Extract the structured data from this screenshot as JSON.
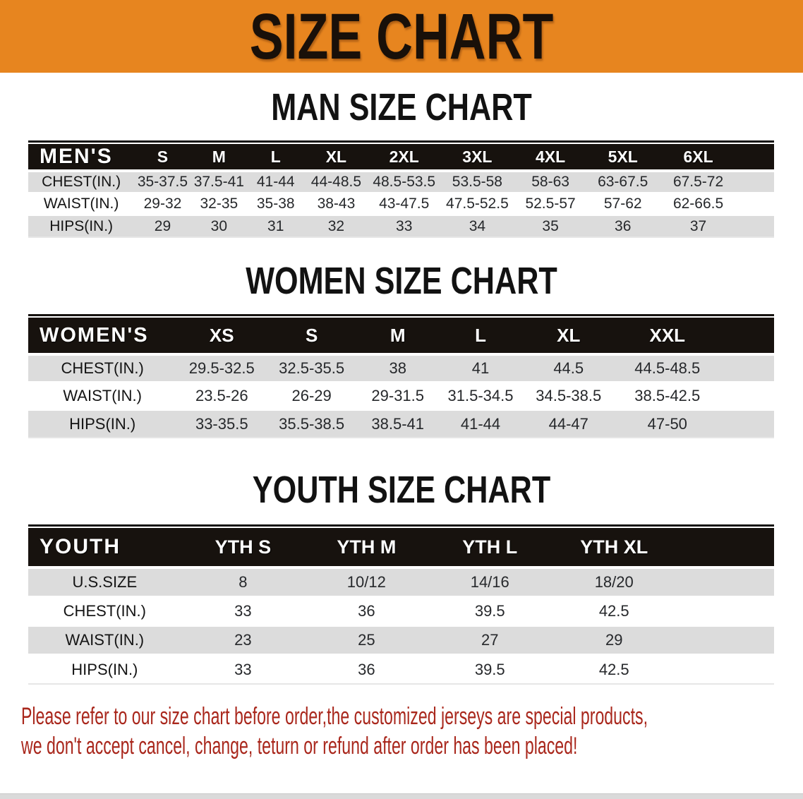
{
  "banner": {
    "title": "SIZE CHART",
    "bg_color": "#E7851F"
  },
  "sections": [
    {
      "id": "men",
      "heading": "MAN SIZE CHART",
      "table": {
        "header": [
          "MEN'S",
          "S",
          "M",
          "L",
          "XL",
          "2XL",
          "3XL",
          "4XL",
          "5XL",
          "6XL"
        ],
        "rows": [
          [
            "CHEST(IN.)",
            "35-37.5",
            "37.5-41",
            "41-44",
            "44-48.5",
            "48.5-53.5",
            "53.5-58",
            "58-63",
            "63-67.5",
            "67.5-72"
          ],
          [
            "WAIST(IN.)",
            "29-32",
            "32-35",
            "35-38",
            "38-43",
            "43-47.5",
            "47.5-52.5",
            "52.5-57",
            "57-62",
            "62-66.5"
          ],
          [
            "HIPS(IN.)",
            "29",
            "30",
            "31",
            "32",
            "33",
            "34",
            "35",
            "36",
            "37"
          ]
        ]
      }
    },
    {
      "id": "women",
      "heading": "WOMEN SIZE CHART",
      "table": {
        "header": [
          "WOMEN'S",
          "XS",
          "S",
          "M",
          "L",
          "XL",
          "XXL"
        ],
        "rows": [
          [
            "CHEST(IN.)",
            "29.5-32.5",
            "32.5-35.5",
            "38",
            "41",
            "44.5",
            "44.5-48.5"
          ],
          [
            "WAIST(IN.)",
            "23.5-26",
            "26-29",
            "29-31.5",
            "31.5-34.5",
            "34.5-38.5",
            "38.5-42.5"
          ],
          [
            "HIPS(IN.)",
            "33-35.5",
            "35.5-38.5",
            "38.5-41",
            "41-44",
            "44-47",
            "47-50"
          ]
        ]
      }
    },
    {
      "id": "youth",
      "heading": "YOUTH SIZE CHART",
      "table": {
        "header": [
          "YOUTH",
          "YTH S",
          "YTH M",
          "YTH L",
          "YTH XL"
        ],
        "rows": [
          [
            "U.S.SIZE",
            "8",
            "10/12",
            "14/16",
            "18/20"
          ],
          [
            "CHEST(IN.)",
            "33",
            "36",
            "39.5",
            "42.5"
          ],
          [
            "WAIST(IN.)",
            "23",
            "25",
            "27",
            "29"
          ],
          [
            "HIPS(IN.)",
            "33",
            "36",
            "39.5",
            "42.5"
          ]
        ]
      }
    }
  ],
  "disclaimer": {
    "color": "#A9271C",
    "lines": [
      "Please refer to our size chart before order,the customized jerseys are special products,",
      "we don't accept cancel, change, teturn or refund after order has been placed!"
    ]
  }
}
